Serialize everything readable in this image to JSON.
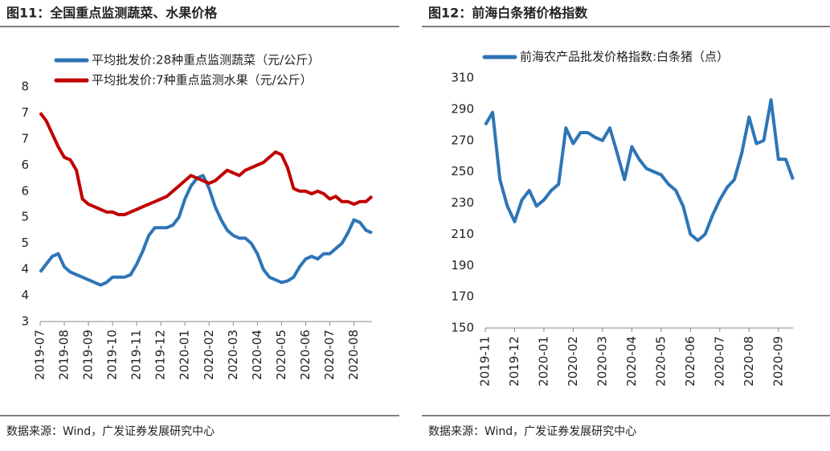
{
  "chart_data": [
    {
      "type": "line",
      "title": "图11：全国重点监测蔬菜、水果价格",
      "source": "数据来源：Wind，广发证券发展研究中心",
      "categories": [
        "2019-07",
        null,
        null,
        null,
        "2019-08",
        null,
        null,
        null,
        "2019-09",
        null,
        null,
        null,
        "2019-10",
        null,
        null,
        null,
        "2019-11",
        null,
        null,
        null,
        "2019-12",
        null,
        null,
        null,
        "2020-01",
        null,
        null,
        null,
        "2020-02",
        null,
        null,
        null,
        "2020-03",
        null,
        null,
        null,
        "2020-04",
        null,
        null,
        null,
        "2020-05",
        null,
        null,
        null,
        "2020-06",
        null,
        null,
        null,
        "2020-07",
        null,
        null,
        null,
        "2020-08",
        null,
        null,
        null
      ],
      "series": [
        {
          "name": "平均批发价:28种重点监测蔬菜（元/公斤）",
          "color": "#2e75b6",
          "values": [
            3.95,
            4.1,
            4.25,
            4.3,
            4.05,
            3.95,
            3.9,
            3.85,
            3.8,
            3.75,
            3.7,
            3.75,
            3.85,
            3.85,
            3.85,
            3.9,
            4.1,
            4.35,
            4.65,
            4.8,
            4.8,
            4.8,
            4.85,
            5.0,
            5.35,
            5.6,
            5.75,
            5.8,
            5.55,
            5.2,
            4.95,
            4.75,
            4.65,
            4.6,
            4.6,
            4.5,
            4.3,
            4.0,
            3.85,
            3.8,
            3.75,
            3.78,
            3.85,
            4.05,
            4.2,
            4.25,
            4.2,
            4.3,
            4.3,
            4.4,
            4.5,
            4.7,
            4.95,
            4.9,
            4.75,
            4.7
          ]
        },
        {
          "name": "平均批发价:7种重点监测水果（元/公斤）",
          "color": "#c00000",
          "values": [
            7.0,
            6.85,
            6.6,
            6.35,
            6.15,
            6.1,
            5.9,
            5.35,
            5.25,
            5.2,
            5.15,
            5.1,
            5.1,
            5.05,
            5.05,
            5.1,
            5.15,
            5.2,
            5.25,
            5.3,
            5.35,
            5.4,
            5.5,
            5.6,
            5.7,
            5.8,
            5.75,
            5.7,
            5.65,
            5.7,
            5.8,
            5.9,
            5.85,
            5.8,
            5.9,
            5.95,
            6.0,
            6.05,
            6.15,
            6.25,
            6.2,
            5.95,
            5.55,
            5.5,
            5.5,
            5.45,
            5.5,
            5.45,
            5.35,
            5.4,
            5.3,
            5.3,
            5.25,
            5.3,
            5.3,
            5.4
          ]
        }
      ],
      "ylim": [
        3,
        7.5
      ],
      "yticks": [
        3,
        {
          "value": 3.5,
          "label": "4"
        },
        4,
        {
          "value": 4.5,
          "label": "5"
        },
        5,
        {
          "value": 5.5,
          "label": "6"
        },
        6,
        {
          "value": 6.5,
          "label": "7"
        },
        7,
        {
          "value": 7.5,
          "label": "8"
        }
      ]
    },
    {
      "type": "line",
      "title": "图12：前海白条猪价格指数",
      "source": "数据来源：Wind，广发证券发展研究中心",
      "categories": [
        "2019-11",
        null,
        null,
        null,
        "2019-12",
        null,
        null,
        null,
        "2020-01",
        null,
        null,
        null,
        "2020-02",
        null,
        null,
        null,
        "2020-03",
        null,
        null,
        null,
        "2020-04",
        null,
        null,
        null,
        "2020-05",
        null,
        null,
        null,
        "2020-06",
        null,
        null,
        null,
        "2020-07",
        null,
        null,
        null,
        "2020-08",
        null,
        null,
        null,
        "2020-09",
        null,
        null
      ],
      "series": [
        {
          "name": "前海农产品批发价格指数:白条猪（点）",
          "color": "#2e75b6",
          "values": [
            280,
            288,
            245,
            228,
            218,
            232,
            238,
            228,
            232,
            238,
            242,
            278,
            268,
            275,
            275,
            272,
            270,
            278,
            262,
            245,
            266,
            258,
            252,
            250,
            248,
            242,
            238,
            228,
            210,
            206,
            210,
            222,
            232,
            240,
            245,
            262,
            285,
            268,
            270,
            296,
            258,
            258,
            245
          ]
        }
      ],
      "ylim": [
        150,
        310
      ],
      "yticks": [
        150,
        170,
        190,
        210,
        230,
        250,
        270,
        290,
        310
      ]
    }
  ]
}
